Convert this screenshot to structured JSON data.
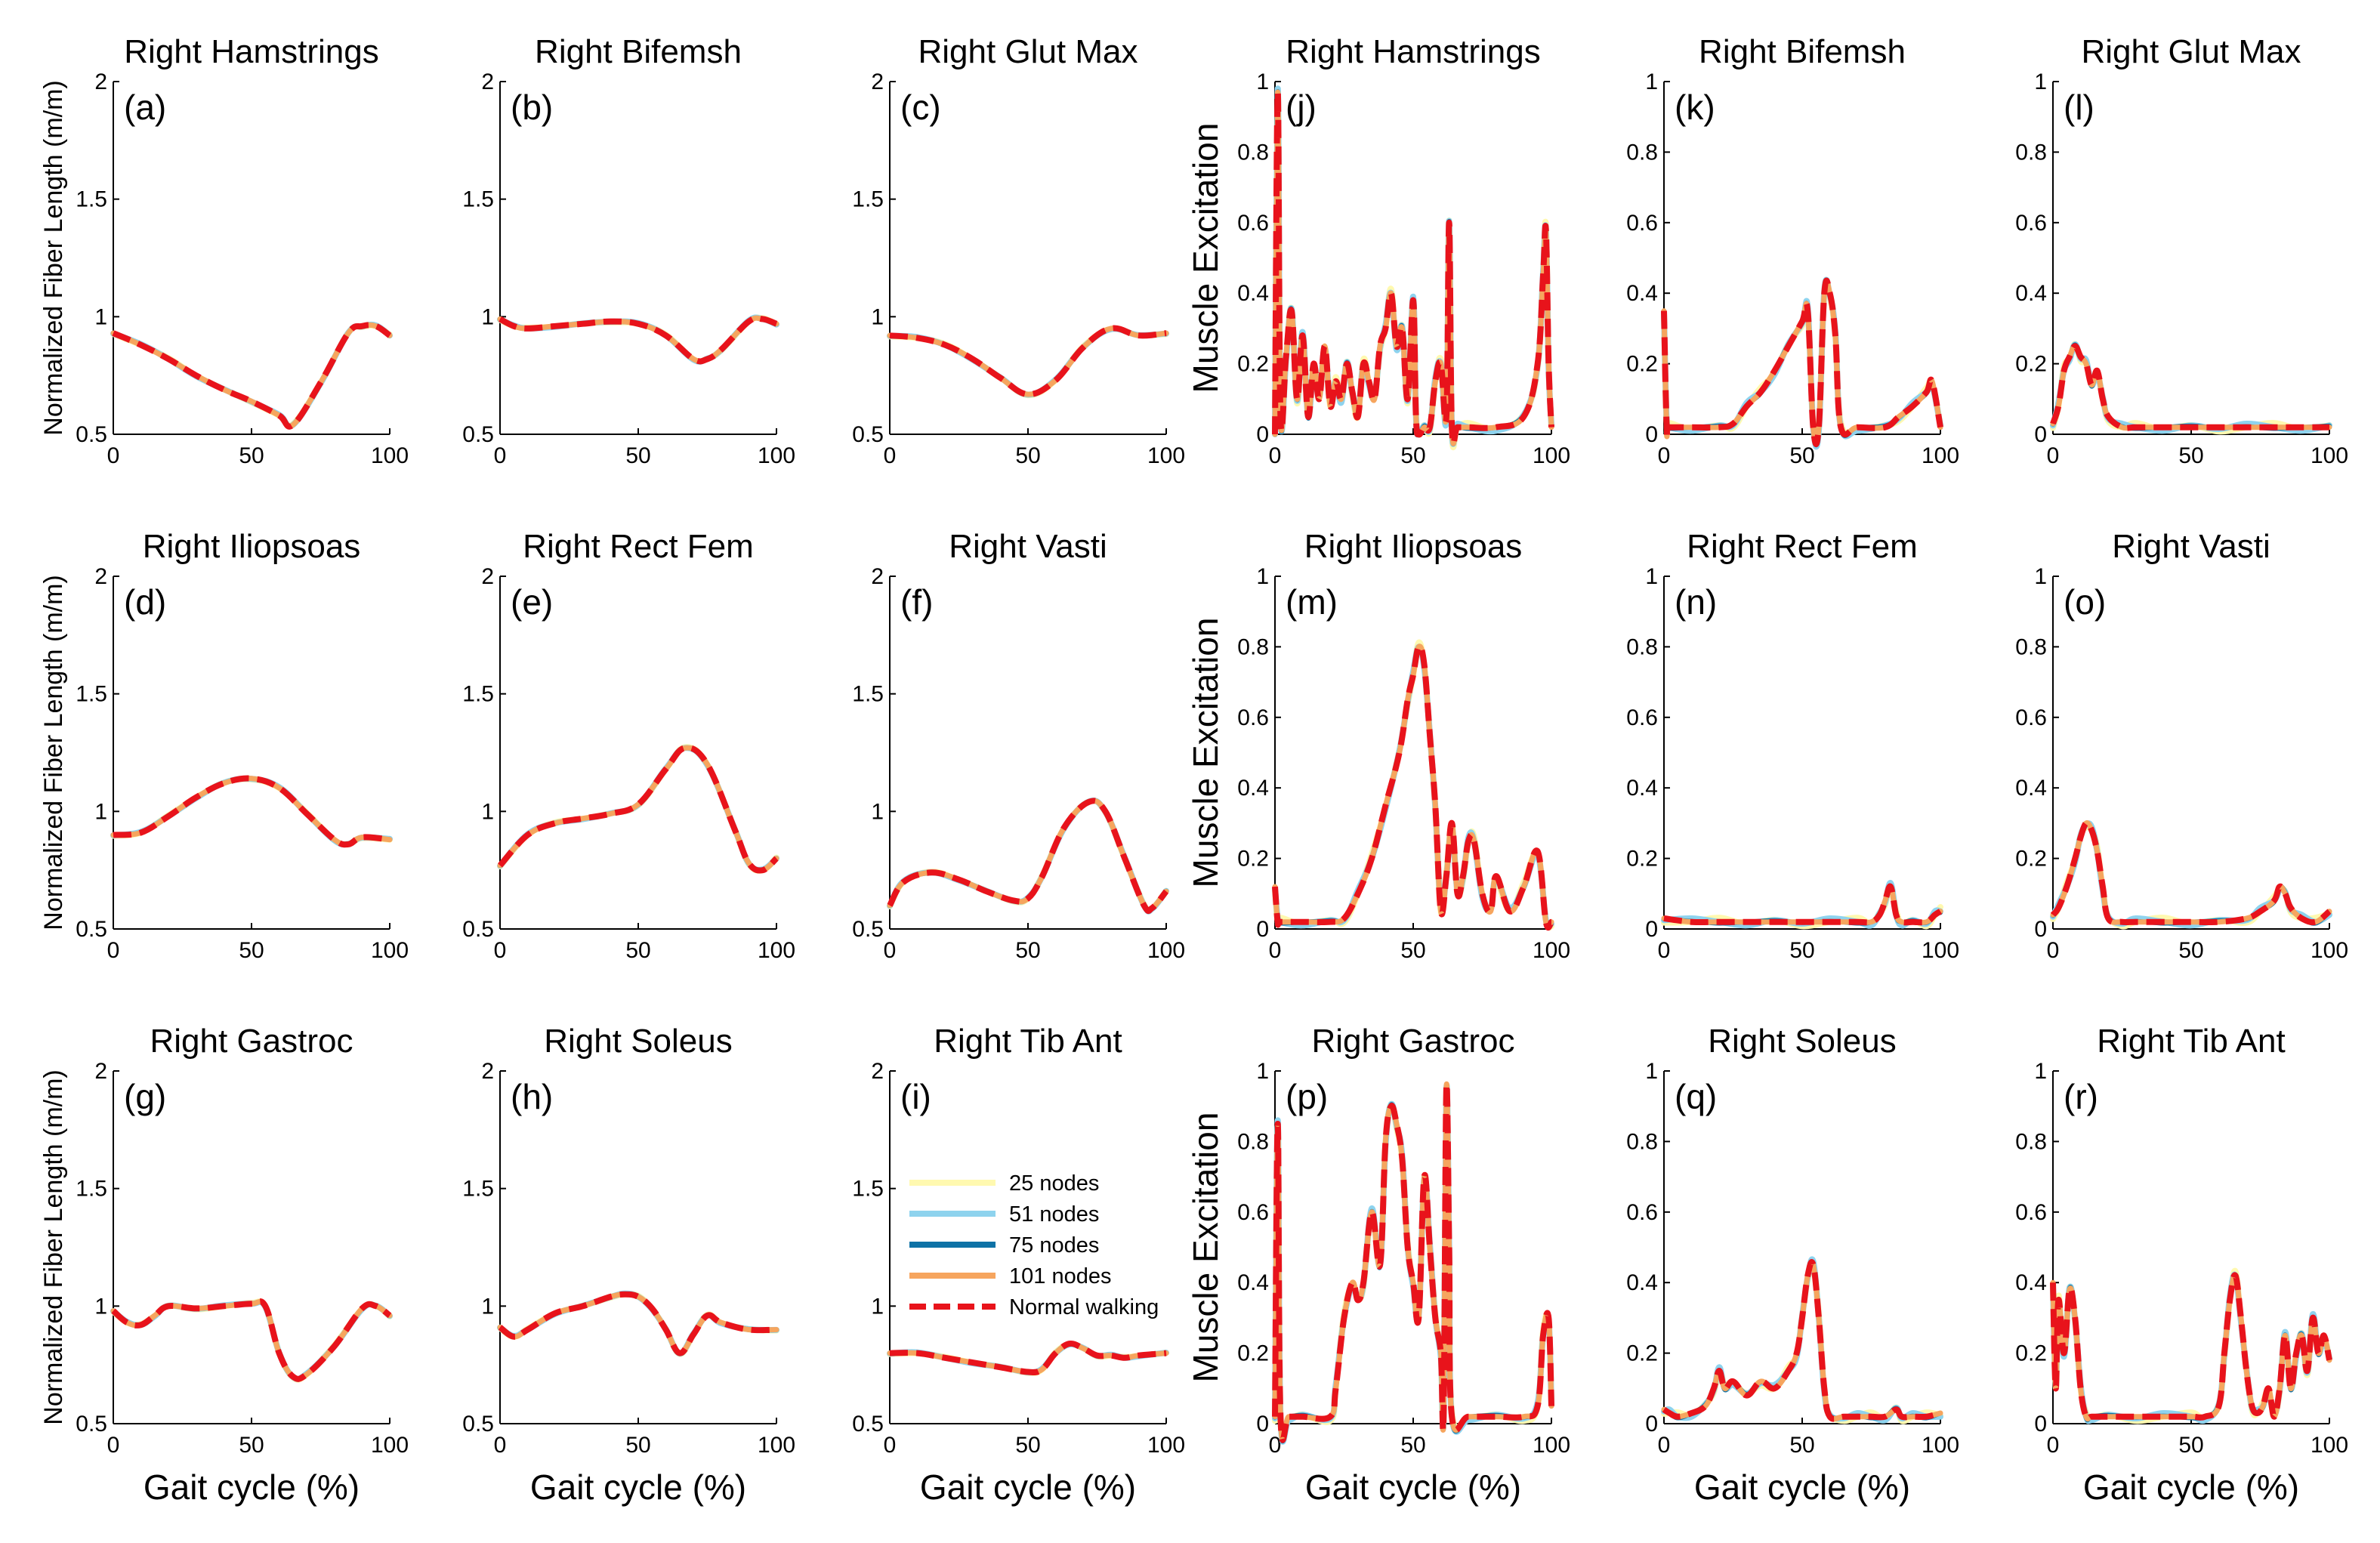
{
  "figure": {
    "x_axis_label": "Gait cycle (%)",
    "fiber_y_label": "Normalized Fiber Length (m/m)",
    "excitation_y_label": "Muscle Excitation"
  },
  "legend": [
    {
      "label": "25 nodes",
      "color": "#FFF9B0",
      "dash": false
    },
    {
      "label": "51 nodes",
      "color": "#8ED3EE",
      "dash": false
    },
    {
      "label": "75 nodes",
      "color": "#0E72A6",
      "dash": false
    },
    {
      "label": "101 nodes",
      "color": "#F6A55E",
      "dash": false
    },
    {
      "label": "Normal walking",
      "color": "#E8131B",
      "dash": true
    }
  ],
  "chart_data": [
    {
      "id": "a",
      "type": "line",
      "panel_label": "(a)",
      "title": "Right Hamstrings",
      "quantity": "fiber",
      "xlim": [
        0,
        100
      ],
      "ylim": [
        0.5,
        2
      ],
      "xticks": [
        "0",
        "50",
        "100"
      ],
      "yticks": [
        "0.5",
        "1",
        "1.5",
        "2"
      ],
      "x": [
        0,
        10,
        20,
        30,
        40,
        50,
        60,
        65,
        75,
        85,
        90,
        95,
        100
      ],
      "y": [
        0.93,
        0.88,
        0.82,
        0.75,
        0.69,
        0.64,
        0.58,
        0.54,
        0.72,
        0.93,
        0.96,
        0.96,
        0.92
      ]
    },
    {
      "id": "b",
      "type": "line",
      "panel_label": "(b)",
      "title": "Right Bifemsh",
      "quantity": "fiber",
      "xlim": [
        0,
        100
      ],
      "ylim": [
        0.5,
        2
      ],
      "xticks": [
        "0",
        "50",
        "100"
      ],
      "yticks": [
        "0.5",
        "1",
        "1.5",
        "2"
      ],
      "x": [
        0,
        5,
        10,
        20,
        30,
        40,
        50,
        60,
        70,
        75,
        80,
        90,
        95,
        100
      ],
      "y": [
        0.99,
        0.96,
        0.95,
        0.96,
        0.97,
        0.98,
        0.97,
        0.92,
        0.82,
        0.82,
        0.86,
        0.98,
        0.99,
        0.97
      ]
    },
    {
      "id": "c",
      "type": "line",
      "panel_label": "(c)",
      "title": "Right Glut Max",
      "quantity": "fiber",
      "xlim": [
        0,
        100
      ],
      "ylim": [
        0.5,
        2
      ],
      "xticks": [
        "0",
        "50",
        "100"
      ],
      "yticks": [
        "0.5",
        "1",
        "1.5",
        "2"
      ],
      "x": [
        0,
        10,
        20,
        30,
        40,
        50,
        60,
        70,
        80,
        90,
        100
      ],
      "y": [
        0.92,
        0.91,
        0.88,
        0.82,
        0.74,
        0.67,
        0.73,
        0.87,
        0.95,
        0.92,
        0.93
      ]
    },
    {
      "id": "d",
      "type": "line",
      "panel_label": "(d)",
      "title": "Right Iliopsoas",
      "quantity": "fiber",
      "xlim": [
        0,
        100
      ],
      "ylim": [
        0.5,
        2
      ],
      "xticks": [
        "0",
        "50",
        "100"
      ],
      "yticks": [
        "0.5",
        "1",
        "1.5",
        "2"
      ],
      "x": [
        0,
        10,
        20,
        30,
        40,
        50,
        60,
        70,
        80,
        85,
        90,
        100
      ],
      "y": [
        0.9,
        0.91,
        0.98,
        1.06,
        1.12,
        1.14,
        1.1,
        0.99,
        0.88,
        0.86,
        0.89,
        0.88
      ]
    },
    {
      "id": "e",
      "type": "line",
      "panel_label": "(e)",
      "title": "Right Rect Fem",
      "quantity": "fiber",
      "xlim": [
        0,
        100
      ],
      "ylim": [
        0.5,
        2
      ],
      "xticks": [
        "0",
        "50",
        "100"
      ],
      "yticks": [
        "0.5",
        "1",
        "1.5",
        "2"
      ],
      "x": [
        0,
        10,
        20,
        30,
        40,
        50,
        60,
        67,
        75,
        85,
        90,
        95,
        100
      ],
      "y": [
        0.77,
        0.9,
        0.95,
        0.97,
        0.99,
        1.03,
        1.18,
        1.27,
        1.2,
        0.92,
        0.78,
        0.75,
        0.8
      ]
    },
    {
      "id": "f",
      "type": "line",
      "panel_label": "(f)",
      "title": "Right Vasti",
      "quantity": "fiber",
      "xlim": [
        0,
        100
      ],
      "ylim": [
        0.5,
        2
      ],
      "xticks": [
        "0",
        "50",
        "100"
      ],
      "yticks": [
        "0.5",
        "1",
        "1.5",
        "2"
      ],
      "x": [
        0,
        5,
        15,
        25,
        35,
        45,
        50,
        55,
        63,
        72,
        78,
        85,
        92,
        95,
        100
      ],
      "y": [
        0.6,
        0.7,
        0.74,
        0.71,
        0.66,
        0.62,
        0.63,
        0.72,
        0.93,
        1.04,
        1.0,
        0.8,
        0.6,
        0.59,
        0.66
      ]
    },
    {
      "id": "g",
      "type": "line",
      "panel_label": "(g)",
      "title": "Right Gastroc",
      "quantity": "fiber",
      "xlim": [
        0,
        100
      ],
      "ylim": [
        0.5,
        2
      ],
      "xticks": [
        "0",
        "50",
        "100"
      ],
      "yticks": [
        "0.5",
        "1",
        "1.5",
        "2"
      ],
      "x": [
        0,
        5,
        10,
        15,
        20,
        30,
        40,
        50,
        55,
        60,
        65,
        70,
        80,
        90,
        95,
        100
      ],
      "y": [
        0.98,
        0.93,
        0.92,
        0.96,
        1.0,
        0.99,
        1.0,
        1.01,
        1.0,
        0.8,
        0.7,
        0.71,
        0.83,
        0.99,
        1.0,
        0.96
      ]
    },
    {
      "id": "h",
      "type": "line",
      "panel_label": "(h)",
      "title": "Right Soleus",
      "quantity": "fiber",
      "xlim": [
        0,
        100
      ],
      "ylim": [
        0.5,
        2
      ],
      "xticks": [
        "0",
        "50",
        "100"
      ],
      "yticks": [
        "0.5",
        "1",
        "1.5",
        "2"
      ],
      "x": [
        0,
        5,
        10,
        20,
        30,
        40,
        45,
        50,
        55,
        60,
        65,
        70,
        75,
        80,
        90,
        100
      ],
      "y": [
        0.91,
        0.87,
        0.9,
        0.97,
        1.0,
        1.04,
        1.05,
        1.04,
        0.99,
        0.9,
        0.8,
        0.88,
        0.96,
        0.93,
        0.9,
        0.9
      ]
    },
    {
      "id": "i",
      "type": "line",
      "panel_label": "(i)",
      "title": "Right Tib Ant",
      "quantity": "fiber",
      "xlim": [
        0,
        100
      ],
      "ylim": [
        0.5,
        2
      ],
      "xticks": [
        "0",
        "50",
        "100"
      ],
      "yticks": [
        "0.5",
        "1",
        "1.5",
        "2"
      ],
      "x": [
        0,
        10,
        20,
        30,
        40,
        50,
        55,
        60,
        65,
        70,
        75,
        80,
        85,
        90,
        100
      ],
      "y": [
        0.8,
        0.8,
        0.78,
        0.76,
        0.74,
        0.72,
        0.73,
        0.8,
        0.84,
        0.82,
        0.79,
        0.79,
        0.78,
        0.79,
        0.8
      ]
    },
    {
      "id": "j",
      "type": "line",
      "panel_label": "(j)",
      "title": "Right Hamstrings",
      "quantity": "excitation",
      "xlim": [
        0,
        100
      ],
      "ylim": [
        0,
        1
      ],
      "xticks": [
        "0",
        "50",
        "100"
      ],
      "yticks": [
        "0",
        "0.2",
        "0.4",
        "0.6",
        "0.8",
        "1"
      ],
      "x": [
        0,
        1,
        2,
        4,
        6,
        8,
        10,
        12,
        14,
        16,
        18,
        20,
        22,
        24,
        26,
        28,
        30,
        32,
        34,
        36,
        38,
        40,
        42,
        44,
        46,
        48,
        50,
        51,
        52,
        54,
        56,
        58,
        60,
        62,
        63,
        64,
        66,
        70,
        80,
        90,
        95,
        97,
        98,
        99,
        100
      ],
      "y": [
        0.0,
        0.97,
        0.05,
        0.22,
        0.35,
        0.1,
        0.28,
        0.05,
        0.2,
        0.1,
        0.25,
        0.08,
        0.15,
        0.1,
        0.2,
        0.12,
        0.05,
        0.2,
        0.15,
        0.1,
        0.25,
        0.3,
        0.4,
        0.25,
        0.3,
        0.1,
        0.38,
        0.05,
        0.0,
        0.02,
        0.02,
        0.15,
        0.2,
        0.05,
        0.6,
        0.02,
        0.02,
        0.02,
        0.02,
        0.05,
        0.2,
        0.45,
        0.58,
        0.2,
        0.02
      ]
    },
    {
      "id": "k",
      "type": "line",
      "panel_label": "(k)",
      "title": "Right Bifemsh",
      "quantity": "excitation",
      "xlim": [
        0,
        100
      ],
      "ylim": [
        0,
        1
      ],
      "xticks": [
        "0",
        "50",
        "100"
      ],
      "yticks": [
        "0",
        "0.2",
        "0.4",
        "0.6",
        "0.8",
        "1"
      ],
      "x": [
        0,
        1,
        2,
        10,
        20,
        25,
        30,
        35,
        40,
        45,
        50,
        52,
        54,
        56,
        58,
        60,
        62,
        64,
        70,
        80,
        85,
        90,
        95,
        97,
        100
      ],
      "y": [
        0.35,
        0.02,
        0.02,
        0.02,
        0.02,
        0.03,
        0.08,
        0.12,
        0.18,
        0.25,
        0.32,
        0.35,
        0.02,
        0.02,
        0.4,
        0.4,
        0.28,
        0.02,
        0.02,
        0.02,
        0.05,
        0.08,
        0.12,
        0.15,
        0.02
      ]
    },
    {
      "id": "l",
      "type": "line",
      "panel_label": "(l)",
      "title": "Right Glut Max",
      "quantity": "excitation",
      "xlim": [
        0,
        100
      ],
      "ylim": [
        0,
        1
      ],
      "xticks": [
        "0",
        "50",
        "100"
      ],
      "yticks": [
        "0",
        "0.2",
        "0.4",
        "0.6",
        "0.8",
        "1"
      ],
      "x": [
        0,
        2,
        4,
        6,
        8,
        10,
        12,
        14,
        16,
        18,
        20,
        25,
        30,
        40,
        50,
        60,
        70,
        80,
        90,
        100
      ],
      "y": [
        0.03,
        0.08,
        0.18,
        0.22,
        0.25,
        0.22,
        0.2,
        0.14,
        0.18,
        0.1,
        0.05,
        0.02,
        0.02,
        0.02,
        0.02,
        0.02,
        0.02,
        0.02,
        0.02,
        0.02
      ]
    },
    {
      "id": "m",
      "type": "line",
      "panel_label": "(m)",
      "title": "Right Iliopsoas",
      "quantity": "excitation",
      "xlim": [
        0,
        100
      ],
      "ylim": [
        0,
        1
      ],
      "xticks": [
        "0",
        "50",
        "100"
      ],
      "yticks": [
        "0",
        "0.2",
        "0.4",
        "0.6",
        "0.8",
        "1"
      ],
      "x": [
        0,
        1,
        2,
        10,
        20,
        25,
        30,
        35,
        40,
        45,
        48,
        50,
        52,
        54,
        56,
        58,
        60,
        62,
        64,
        66,
        68,
        70,
        72,
        75,
        78,
        80,
        85,
        90,
        95,
        98,
        100
      ],
      "y": [
        0.12,
        0.02,
        0.02,
        0.02,
        0.02,
        0.03,
        0.1,
        0.2,
        0.35,
        0.5,
        0.65,
        0.72,
        0.8,
        0.75,
        0.55,
        0.35,
        0.05,
        0.15,
        0.3,
        0.1,
        0.15,
        0.25,
        0.25,
        0.1,
        0.05,
        0.15,
        0.05,
        0.12,
        0.22,
        0.02,
        0.02
      ]
    },
    {
      "id": "n",
      "type": "line",
      "panel_label": "(n)",
      "title": "Right Rect Fem",
      "quantity": "excitation",
      "xlim": [
        0,
        100
      ],
      "ylim": [
        0,
        1
      ],
      "xticks": [
        "0",
        "50",
        "100"
      ],
      "yticks": [
        "0",
        "0.2",
        "0.4",
        "0.6",
        "0.8",
        "1"
      ],
      "x": [
        0,
        10,
        20,
        30,
        40,
        50,
        60,
        70,
        75,
        78,
        80,
        82,
        84,
        86,
        90,
        95,
        98,
        100
      ],
      "y": [
        0.03,
        0.02,
        0.02,
        0.02,
        0.02,
        0.02,
        0.02,
        0.02,
        0.02,
        0.04,
        0.08,
        0.12,
        0.04,
        0.02,
        0.02,
        0.02,
        0.04,
        0.05
      ]
    },
    {
      "id": "o",
      "type": "line",
      "panel_label": "(o)",
      "title": "Right Vasti",
      "quantity": "excitation",
      "xlim": [
        0,
        100
      ],
      "ylim": [
        0,
        1
      ],
      "xticks": [
        "0",
        "50",
        "100"
      ],
      "yticks": [
        "0",
        "0.2",
        "0.4",
        "0.6",
        "0.8",
        "1"
      ],
      "x": [
        0,
        2,
        5,
        8,
        10,
        12,
        14,
        16,
        18,
        20,
        25,
        30,
        40,
        50,
        60,
        70,
        75,
        80,
        82,
        84,
        86,
        90,
        95,
        100
      ],
      "y": [
        0.04,
        0.06,
        0.12,
        0.2,
        0.26,
        0.3,
        0.28,
        0.22,
        0.12,
        0.03,
        0.02,
        0.02,
        0.02,
        0.02,
        0.02,
        0.03,
        0.05,
        0.08,
        0.12,
        0.1,
        0.06,
        0.03,
        0.02,
        0.05
      ]
    },
    {
      "id": "p",
      "type": "line",
      "panel_label": "(p)",
      "title": "Right Gastroc",
      "quantity": "excitation",
      "xlim": [
        0,
        100
      ],
      "ylim": [
        0,
        1
      ],
      "xticks": [
        "0",
        "50",
        "100"
      ],
      "yticks": [
        "0",
        "0.2",
        "0.4",
        "0.6",
        "0.8",
        "1"
      ],
      "x": [
        0,
        1,
        2,
        5,
        10,
        20,
        22,
        25,
        28,
        30,
        32,
        35,
        38,
        40,
        42,
        44,
        46,
        48,
        50,
        52,
        54,
        56,
        58,
        60,
        61,
        62,
        63,
        64,
        70,
        80,
        90,
        95,
        97,
        99,
        100
      ],
      "y": [
        0.02,
        0.85,
        0.02,
        0.02,
        0.02,
        0.02,
        0.1,
        0.3,
        0.4,
        0.35,
        0.4,
        0.6,
        0.45,
        0.8,
        0.9,
        0.85,
        0.75,
        0.5,
        0.4,
        0.3,
        0.7,
        0.5,
        0.3,
        0.2,
        0.02,
        0.95,
        0.5,
        0.02,
        0.02,
        0.02,
        0.02,
        0.05,
        0.25,
        0.3,
        0.05
      ]
    },
    {
      "id": "q",
      "type": "line",
      "panel_label": "(q)",
      "title": "Right Soleus",
      "quantity": "excitation",
      "xlim": [
        0,
        100
      ],
      "ylim": [
        0,
        1
      ],
      "xticks": [
        "0",
        "50",
        "100"
      ],
      "yticks": [
        "0",
        "0.2",
        "0.4",
        "0.6",
        "0.8",
        "1"
      ],
      "x": [
        0,
        2,
        5,
        10,
        15,
        18,
        20,
        22,
        25,
        30,
        35,
        40,
        45,
        48,
        50,
        52,
        54,
        56,
        58,
        60,
        65,
        70,
        75,
        80,
        84,
        86,
        90,
        95,
        100
      ],
      "y": [
        0.04,
        0.03,
        0.02,
        0.03,
        0.05,
        0.1,
        0.15,
        0.1,
        0.12,
        0.08,
        0.12,
        0.1,
        0.15,
        0.2,
        0.3,
        0.42,
        0.45,
        0.3,
        0.1,
        0.02,
        0.02,
        0.02,
        0.02,
        0.02,
        0.04,
        0.02,
        0.02,
        0.02,
        0.03
      ]
    },
    {
      "id": "r",
      "type": "line",
      "panel_label": "(r)",
      "title": "Right Tib Ant",
      "quantity": "excitation",
      "xlim": [
        0,
        100
      ],
      "ylim": [
        0,
        1
      ],
      "xticks": [
        "0",
        "50",
        "100"
      ],
      "yticks": [
        "0",
        "0.2",
        "0.4",
        "0.6",
        "0.8",
        "1"
      ],
      "x": [
        0,
        1,
        2,
        4,
        6,
        8,
        10,
        12,
        14,
        20,
        30,
        40,
        50,
        55,
        60,
        62,
        64,
        66,
        68,
        70,
        72,
        74,
        76,
        78,
        80,
        82,
        84,
        86,
        88,
        90,
        92,
        94,
        96,
        98,
        100
      ],
      "y": [
        0.4,
        0.1,
        0.35,
        0.2,
        0.38,
        0.3,
        0.1,
        0.02,
        0.02,
        0.02,
        0.02,
        0.02,
        0.02,
        0.02,
        0.05,
        0.2,
        0.35,
        0.42,
        0.3,
        0.15,
        0.05,
        0.03,
        0.05,
        0.1,
        0.02,
        0.1,
        0.25,
        0.1,
        0.2,
        0.25,
        0.15,
        0.3,
        0.2,
        0.25,
        0.18
      ]
    }
  ]
}
